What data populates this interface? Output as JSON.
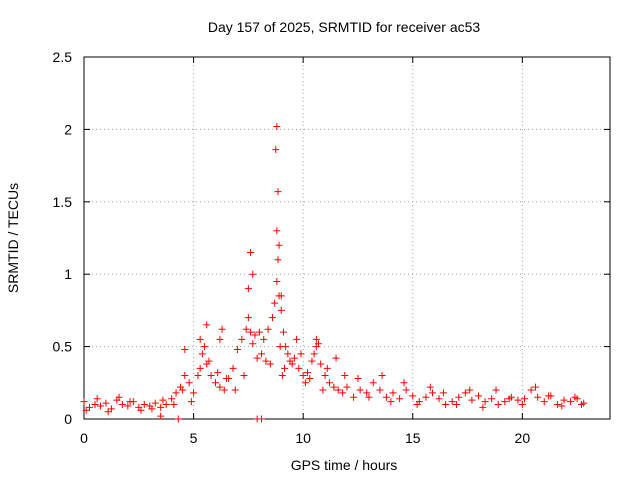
{
  "chart_data": {
    "type": "scatter",
    "title": "Day 157 of 2025, SRMTID for receiver ac53",
    "xlabel": "GPS time / hours",
    "ylabel": "SRMTID / TECUs",
    "xlim": [
      0,
      24
    ],
    "ylim": [
      0,
      2.5
    ],
    "xticks": [
      0,
      5,
      10,
      15,
      20
    ],
    "xtick_labels": [
      "0",
      "5",
      "10",
      "15",
      "20"
    ],
    "yticks": [
      0,
      0.5,
      1,
      1.5,
      2,
      2.5
    ],
    "ytick_labels": [
      "0",
      "0.5",
      "1",
      "1.5",
      "2",
      "2.5"
    ],
    "grid": true,
    "marker": "+",
    "series_color": "#ff0000",
    "series": [
      {
        "name": "SRMTID",
        "x": [
          0.0,
          0.25,
          0.5,
          0.75,
          1.0,
          1.25,
          1.5,
          1.75,
          2.0,
          2.25,
          2.5,
          2.75,
          3.0,
          3.25,
          3.5,
          3.75,
          4.0,
          4.2,
          4.4,
          4.6,
          4.8,
          5.0,
          5.2,
          5.4,
          5.5,
          5.6,
          5.8,
          6.0,
          6.2,
          6.4,
          6.6,
          6.8,
          7.0,
          7.2,
          7.4,
          7.5,
          7.6,
          7.7,
          7.8,
          8.0,
          8.2,
          8.4,
          8.6,
          8.7,
          8.8,
          8.85,
          8.9,
          9.0,
          9.1,
          9.2,
          9.3,
          9.4,
          9.5,
          9.6,
          9.8,
          10.0,
          10.2,
          10.4,
          10.6,
          10.8,
          11.0,
          11.2,
          11.4,
          11.6,
          11.8,
          12.0,
          12.3,
          12.6,
          12.9,
          13.2,
          13.5,
          13.8,
          14.1,
          14.4,
          14.7,
          15.0,
          15.3,
          15.6,
          15.9,
          16.2,
          16.5,
          16.8,
          17.1,
          17.4,
          17.7,
          18.0,
          18.3,
          18.6,
          18.9,
          19.2,
          19.5,
          19.8,
          20.1,
          20.4,
          20.7,
          21.0,
          21.3,
          21.6,
          21.9,
          22.2,
          22.5,
          22.8,
          0.1,
          0.6,
          1.1,
          1.6,
          2.1,
          2.6,
          3.1,
          3.6,
          4.1,
          4.5,
          4.9,
          5.3,
          5.7,
          6.1,
          6.5,
          6.9,
          7.3,
          7.9,
          8.1,
          8.3,
          8.5,
          8.95,
          9.05,
          9.15,
          9.7,
          9.9,
          10.1,
          10.3,
          10.5,
          10.7,
          10.9,
          11.1,
          11.5,
          11.9,
          12.5,
          13.0,
          13.6,
          14.0,
          14.6,
          15.2,
          15.8,
          16.4,
          17.0,
          17.6,
          18.2,
          18.8,
          19.4,
          20.0,
          20.6,
          21.2,
          21.8,
          22.4,
          22.7,
          8.8,
          8.75,
          8.85,
          8.8,
          8.9,
          7.6,
          7.7,
          7.5,
          9.0,
          10.6,
          4.6,
          5.6,
          5.3,
          6.3,
          6.2,
          3.5,
          4.3,
          7.9,
          8.1
        ],
        "y": [
          0.12,
          0.08,
          0.1,
          0.09,
          0.11,
          0.07,
          0.13,
          0.1,
          0.09,
          0.12,
          0.08,
          0.1,
          0.09,
          0.11,
          0.08,
          0.1,
          0.14,
          0.18,
          0.22,
          0.3,
          0.25,
          0.18,
          0.3,
          0.45,
          0.5,
          0.38,
          0.3,
          0.25,
          0.22,
          0.2,
          0.28,
          0.35,
          0.48,
          0.55,
          0.62,
          0.7,
          0.6,
          0.52,
          0.58,
          0.6,
          0.55,
          0.62,
          0.7,
          0.8,
          0.95,
          1.1,
          0.85,
          0.75,
          0.6,
          0.5,
          0.45,
          0.4,
          0.38,
          0.42,
          0.35,
          0.3,
          0.32,
          0.4,
          0.5,
          0.38,
          0.3,
          0.25,
          0.22,
          0.2,
          0.18,
          0.22,
          0.15,
          0.2,
          0.18,
          0.25,
          0.2,
          0.15,
          0.18,
          0.14,
          0.2,
          0.16,
          0.12,
          0.15,
          0.18,
          0.14,
          0.1,
          0.12,
          0.15,
          0.18,
          0.13,
          0.16,
          0.12,
          0.14,
          0.1,
          0.12,
          0.15,
          0.13,
          0.14,
          0.2,
          0.15,
          0.12,
          0.16,
          0.1,
          0.13,
          0.12,
          0.14,
          0.11,
          0.06,
          0.14,
          0.05,
          0.15,
          0.12,
          0.06,
          0.07,
          0.13,
          0.1,
          0.2,
          0.12,
          0.35,
          0.4,
          0.32,
          0.28,
          0.2,
          0.3,
          0.42,
          0.45,
          0.4,
          0.38,
          0.5,
          0.3,
          0.35,
          0.55,
          0.45,
          0.25,
          0.28,
          0.45,
          0.52,
          0.2,
          0.35,
          0.42,
          0.3,
          0.28,
          0.15,
          0.3,
          0.12,
          0.25,
          0.1,
          0.22,
          0.18,
          0.1,
          0.2,
          0.08,
          0.2,
          0.14,
          0.1,
          0.22,
          0.16,
          0.09,
          0.15,
          0.1,
          2.02,
          1.86,
          1.57,
          1.3,
          1.2,
          1.15,
          1.0,
          0.9,
          0.85,
          0.55,
          0.48,
          0.65,
          0.55,
          0.62,
          0.55,
          0.02,
          0.0,
          0.0,
          0.0
        ]
      }
    ]
  }
}
